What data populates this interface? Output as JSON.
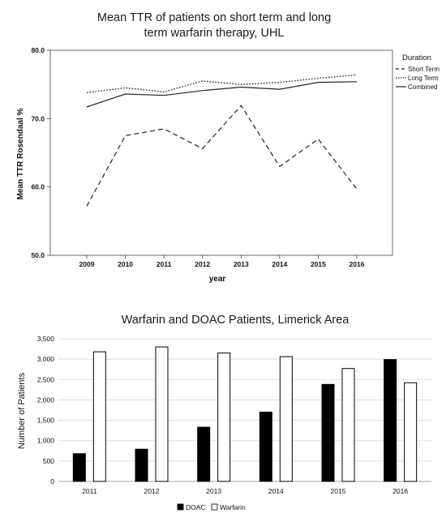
{
  "chart_data": [
    {
      "type": "line",
      "title_line1": "Mean TTR of patients on short term and long",
      "title_line2": "term warfarin therapy, UHL",
      "xlabel": "year",
      "ylabel": "Mean TTR Rosendaal %",
      "legend_title": "Duration",
      "legend_position": "right",
      "x": [
        "2009",
        "2010",
        "2011",
        "2012",
        "2013",
        "2014",
        "2015",
        "2016"
      ],
      "ylim": [
        50,
        80
      ],
      "yticks": [
        "50.0",
        "60.0",
        "70.0",
        "80.0"
      ],
      "yticks_values": [
        50,
        60,
        70,
        80
      ],
      "grid": false,
      "series": [
        {
          "name": "Short Term",
          "style": "dashed",
          "values": [
            57.2,
            67.5,
            68.5,
            65.6,
            71.9,
            63.0,
            67.0,
            59.7
          ]
        },
        {
          "name": "Long Term",
          "style": "dotted",
          "values": [
            73.8,
            74.5,
            73.9,
            75.5,
            75.0,
            75.3,
            75.9,
            76.4
          ]
        },
        {
          "name": "Combined",
          "style": "solid",
          "values": [
            71.7,
            73.6,
            73.4,
            74.1,
            74.6,
            74.3,
            75.3,
            75.4
          ]
        }
      ]
    },
    {
      "type": "bar",
      "title": "Warfarin and DOAC Patients, Limerick Area",
      "xlabel": "",
      "ylabel": "Number of Patients",
      "legend_position": "bottom",
      "categories": [
        "2011",
        "2012",
        "2013",
        "2014",
        "2015",
        "2016"
      ],
      "ylim": [
        0,
        3500
      ],
      "yticks": [
        "0",
        "500",
        "1,000",
        "1,500",
        "2,000",
        "2,500",
        "3,000",
        "3,500"
      ],
      "yticks_values": [
        0,
        500,
        1000,
        1500,
        2000,
        2500,
        3000,
        3500
      ],
      "grid": true,
      "series": [
        {
          "name": "DOAC",
          "color": "#000000",
          "values": [
            680,
            790,
            1330,
            1700,
            2380,
            2990
          ]
        },
        {
          "name": "Warfarin",
          "color": "#ffffff",
          "values": [
            3180,
            3300,
            3150,
            3060,
            2770,
            2420
          ]
        }
      ]
    }
  ]
}
